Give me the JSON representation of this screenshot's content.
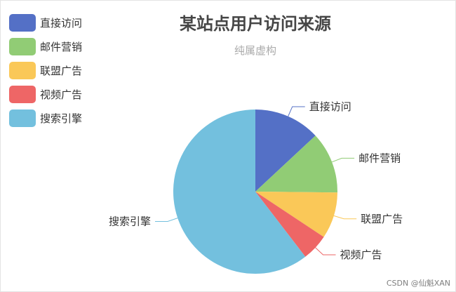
{
  "chart_data": {
    "type": "pie",
    "title": "某站点用户访问来源",
    "subtitle": "纯属虚构",
    "series": [
      {
        "name": "直接访问",
        "value": 335,
        "color": "#5470c6"
      },
      {
        "name": "邮件营销",
        "value": 310,
        "color": "#91cc75"
      },
      {
        "name": "联盟广告",
        "value": 234,
        "color": "#fac858"
      },
      {
        "name": "视频广告",
        "value": 135,
        "color": "#ee6666"
      },
      {
        "name": "搜索引擎",
        "value": 1548,
        "color": "#73c0de"
      }
    ],
    "legend_position": "top-left",
    "start_angle_deg": 90,
    "direction": "clockwise"
  },
  "watermark": "CSDN @仙魁XAN"
}
